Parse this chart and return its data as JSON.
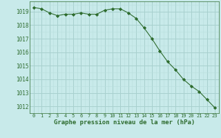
{
  "x": [
    0,
    1,
    2,
    3,
    4,
    5,
    6,
    7,
    8,
    9,
    10,
    11,
    12,
    13,
    14,
    15,
    16,
    17,
    18,
    19,
    20,
    21,
    22,
    23
  ],
  "y": [
    1019.3,
    1019.2,
    1018.9,
    1018.7,
    1018.8,
    1018.8,
    1018.9,
    1018.8,
    1018.8,
    1019.1,
    1019.2,
    1019.2,
    1018.9,
    1018.5,
    1017.8,
    1017.0,
    1016.1,
    1015.3,
    1014.7,
    1014.0,
    1013.5,
    1013.1,
    1012.5,
    1011.9
  ],
  "line_color": "#2d6b2d",
  "marker": "D",
  "marker_size": 2.2,
  "background_color": "#c8eaea",
  "grid_major_color": "#a8d0ce",
  "grid_minor_color": "#b8dedd",
  "xlabel": "Graphe pression niveau de la mer (hPa)",
  "xlabel_color": "#2d6b2d",
  "tick_color": "#2d6b2d",
  "ylim": [
    1011.5,
    1019.75
  ],
  "xlim": [
    -0.5,
    23.5
  ],
  "yticks": [
    1012,
    1013,
    1014,
    1015,
    1016,
    1017,
    1018,
    1019
  ],
  "xticks": [
    0,
    1,
    2,
    3,
    4,
    5,
    6,
    7,
    8,
    9,
    10,
    11,
    12,
    13,
    14,
    15,
    16,
    17,
    18,
    19,
    20,
    21,
    22,
    23
  ]
}
